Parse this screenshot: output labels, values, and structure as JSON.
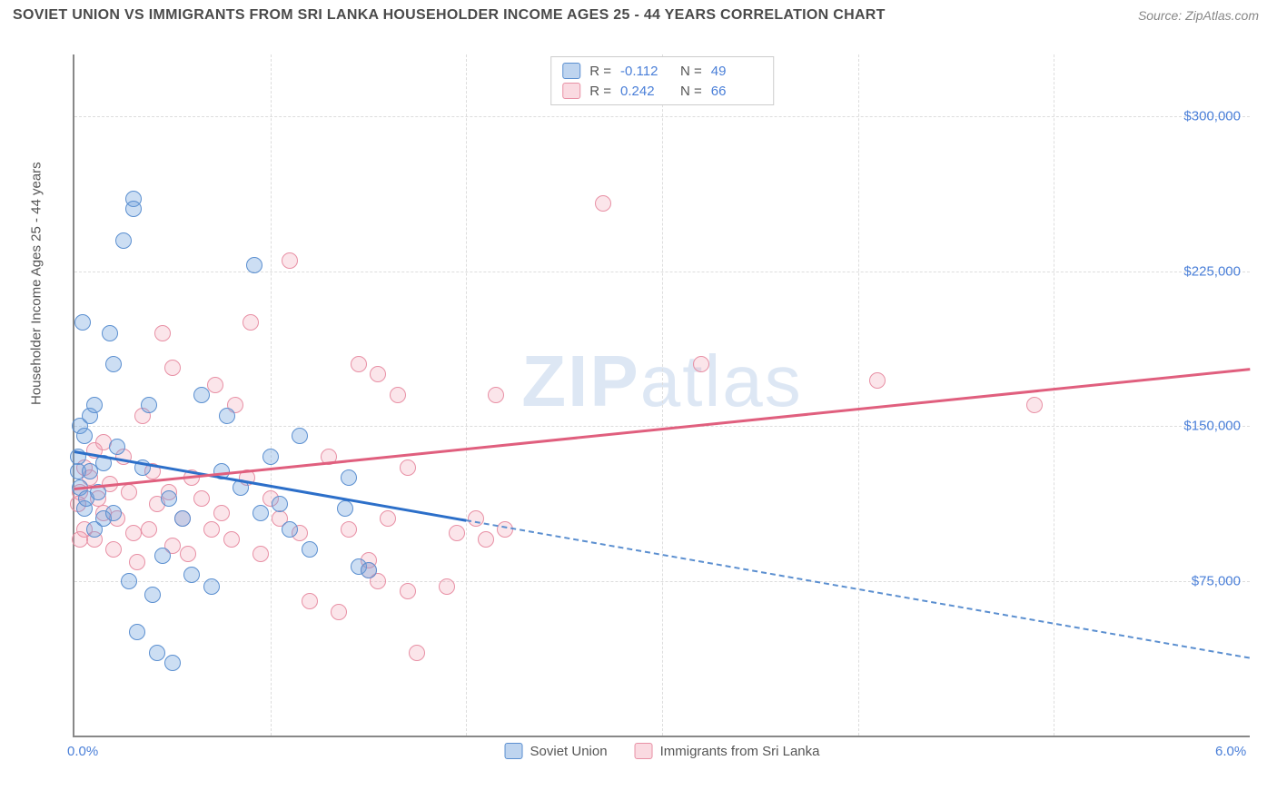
{
  "header": {
    "title": "SOVIET UNION VS IMMIGRANTS FROM SRI LANKA HOUSEHOLDER INCOME AGES 25 - 44 YEARS CORRELATION CHART",
    "source": "Source: ZipAtlas.com"
  },
  "chart": {
    "type": "scatter",
    "y_axis_label": "Householder Income Ages 25 - 44 years",
    "watermark": "ZIPatlas",
    "xlim": [
      0,
      6
    ],
    "ylim": [
      0,
      330000
    ],
    "x_ticks": [
      {
        "pos": 0,
        "label": "0.0%"
      },
      {
        "pos": 6,
        "label": "6.0%"
      }
    ],
    "y_ticks": [
      {
        "pos": 75000,
        "label": "$75,000"
      },
      {
        "pos": 150000,
        "label": "$150,000"
      },
      {
        "pos": 225000,
        "label": "$225,000"
      },
      {
        "pos": 300000,
        "label": "$300,000"
      }
    ],
    "x_gridlines": [
      1,
      2,
      3,
      4,
      5
    ],
    "background_color": "#ffffff",
    "grid_color": "#dddddd",
    "point_radius": 9,
    "series": {
      "blue": {
        "label": "Soviet Union",
        "color_fill": "rgba(110,160,220,0.35)",
        "color_stroke": "#5b8fd0",
        "R": "-0.112",
        "N": "49",
        "trend": {
          "x1": 0,
          "y1": 138000,
          "x2": 6,
          "y2": 38000,
          "solid_until_x": 2.0,
          "color": "#2c6fc9"
        },
        "points": [
          [
            0.02,
            135000
          ],
          [
            0.02,
            128000
          ],
          [
            0.03,
            120000
          ],
          [
            0.03,
            150000
          ],
          [
            0.04,
            200000
          ],
          [
            0.05,
            145000
          ],
          [
            0.05,
            110000
          ],
          [
            0.06,
            115000
          ],
          [
            0.08,
            155000
          ],
          [
            0.08,
            128000
          ],
          [
            0.1,
            100000
          ],
          [
            0.1,
            160000
          ],
          [
            0.12,
            118000
          ],
          [
            0.15,
            132000
          ],
          [
            0.15,
            105000
          ],
          [
            0.18,
            195000
          ],
          [
            0.2,
            180000
          ],
          [
            0.2,
            108000
          ],
          [
            0.22,
            140000
          ],
          [
            0.25,
            240000
          ],
          [
            0.28,
            75000
          ],
          [
            0.3,
            260000
          ],
          [
            0.3,
            255000
          ],
          [
            0.32,
            50000
          ],
          [
            0.35,
            130000
          ],
          [
            0.38,
            160000
          ],
          [
            0.4,
            68000
          ],
          [
            0.42,
            40000
          ],
          [
            0.45,
            87000
          ],
          [
            0.48,
            115000
          ],
          [
            0.5,
            35000
          ],
          [
            0.55,
            105000
          ],
          [
            0.6,
            78000
          ],
          [
            0.65,
            165000
          ],
          [
            0.7,
            72000
          ],
          [
            0.75,
            128000
          ],
          [
            0.78,
            155000
          ],
          [
            0.85,
            120000
          ],
          [
            0.92,
            228000
          ],
          [
            0.95,
            108000
          ],
          [
            1.0,
            135000
          ],
          [
            1.05,
            112000
          ],
          [
            1.1,
            100000
          ],
          [
            1.15,
            145000
          ],
          [
            1.2,
            90000
          ],
          [
            1.38,
            110000
          ],
          [
            1.4,
            125000
          ],
          [
            1.45,
            82000
          ],
          [
            1.5,
            80000
          ]
        ]
      },
      "pink": {
        "label": "Immigrants from Sri Lanka",
        "color_fill": "rgba(240,150,170,0.25)",
        "color_stroke": "#e890a5",
        "R": "0.242",
        "N": "66",
        "trend": {
          "x1": 0,
          "y1": 120000,
          "x2": 6,
          "y2": 178000,
          "color": "#e05f7e"
        },
        "points": [
          [
            0.02,
            112000
          ],
          [
            0.03,
            118000
          ],
          [
            0.05,
            130000
          ],
          [
            0.05,
            100000
          ],
          [
            0.08,
            125000
          ],
          [
            0.1,
            138000
          ],
          [
            0.1,
            95000
          ],
          [
            0.12,
            115000
          ],
          [
            0.15,
            108000
          ],
          [
            0.18,
            122000
          ],
          [
            0.2,
            90000
          ],
          [
            0.22,
            105000
          ],
          [
            0.25,
            135000
          ],
          [
            0.28,
            118000
          ],
          [
            0.3,
            98000
          ],
          [
            0.32,
            84000
          ],
          [
            0.35,
            155000
          ],
          [
            0.38,
            100000
          ],
          [
            0.4,
            128000
          ],
          [
            0.42,
            112000
          ],
          [
            0.45,
            195000
          ],
          [
            0.48,
            118000
          ],
          [
            0.5,
            92000
          ],
          [
            0.5,
            178000
          ],
          [
            0.55,
            105000
          ],
          [
            0.58,
            88000
          ],
          [
            0.6,
            125000
          ],
          [
            0.65,
            115000
          ],
          [
            0.7,
            100000
          ],
          [
            0.72,
            170000
          ],
          [
            0.75,
            108000
          ],
          [
            0.8,
            95000
          ],
          [
            0.82,
            160000
          ],
          [
            0.88,
            125000
          ],
          [
            0.9,
            200000
          ],
          [
            0.95,
            88000
          ],
          [
            1.0,
            115000
          ],
          [
            1.05,
            105000
          ],
          [
            1.1,
            230000
          ],
          [
            1.15,
            98000
          ],
          [
            1.2,
            65000
          ],
          [
            1.3,
            135000
          ],
          [
            1.35,
            60000
          ],
          [
            1.4,
            100000
          ],
          [
            1.45,
            180000
          ],
          [
            1.5,
            85000
          ],
          [
            1.5,
            80000
          ],
          [
            1.55,
            75000
          ],
          [
            1.55,
            175000
          ],
          [
            1.6,
            105000
          ],
          [
            1.65,
            165000
          ],
          [
            1.7,
            130000
          ],
          [
            1.7,
            70000
          ],
          [
            1.75,
            40000
          ],
          [
            1.9,
            72000
          ],
          [
            1.95,
            98000
          ],
          [
            2.05,
            105000
          ],
          [
            2.1,
            95000
          ],
          [
            2.15,
            165000
          ],
          [
            2.2,
            100000
          ],
          [
            2.7,
            258000
          ],
          [
            3.2,
            180000
          ],
          [
            4.1,
            172000
          ],
          [
            4.9,
            160000
          ],
          [
            0.03,
            95000
          ],
          [
            0.15,
            142000
          ]
        ]
      }
    }
  }
}
